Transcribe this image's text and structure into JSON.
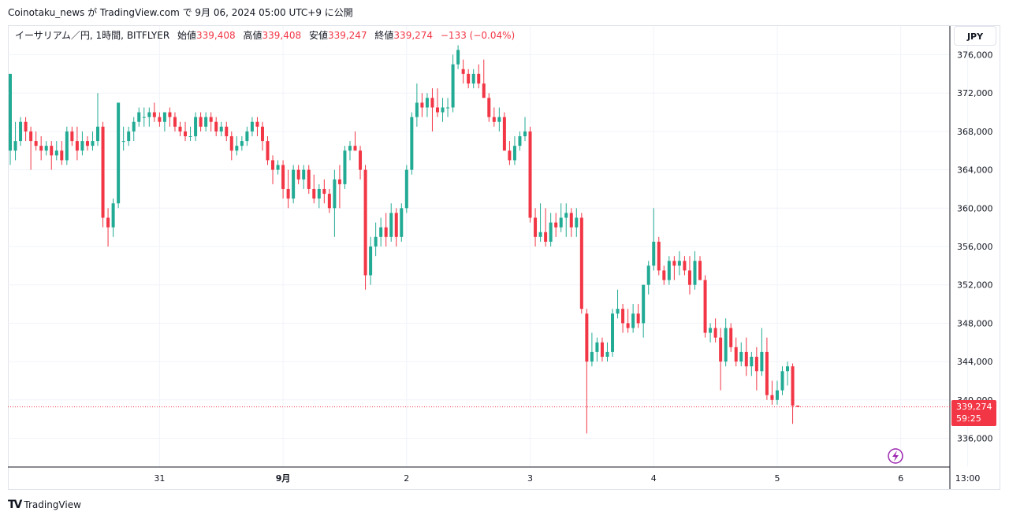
{
  "header": {
    "publish_line": "Coinotaku_news が TradingView.com で 9月 06, 2024 05:00 UTC+9 に公開"
  },
  "legend": {
    "symbol": "イーサリアム／円, 1時間, BITFLYER",
    "open_label": "始値",
    "open": "339,408",
    "high_label": "高値",
    "high": "339,408",
    "low_label": "安値",
    "low": "339,247",
    "close_label": "終値",
    "close": "339,274",
    "change": "−133 (−0.04%)"
  },
  "currency_button": "JPY",
  "last_price": {
    "price": "339,274",
    "countdown": "59:25"
  },
  "footer": {
    "brand": "TradingView",
    "logo": "TV"
  },
  "colors": {
    "up": "#22ab94",
    "down": "#f23645",
    "grid": "#f0f3fa",
    "axis_text": "#131722"
  },
  "icons": {
    "flash": "lightning-icon"
  },
  "chart_data": {
    "type": "candlestick",
    "y_ticks": [
      "336,000",
      "340,000",
      "344,000",
      "348,000",
      "352,000",
      "356,000",
      "360,000",
      "364,000",
      "368,000",
      "372,000",
      "376,000"
    ],
    "ylim": [
      333000,
      379000
    ],
    "x_ticks": [
      {
        "label": "31",
        "index": 29
      },
      {
        "label": "9月",
        "index": 53
      },
      {
        "label": "2",
        "index": 77
      },
      {
        "label": "3",
        "index": 101
      },
      {
        "label": "4",
        "index": 125
      },
      {
        "label": "5",
        "index": 149
      },
      {
        "label": "6",
        "index": 173
      },
      {
        "label": "13:00",
        "index": 186
      }
    ],
    "last_price_value": 339274,
    "candles": [
      [
        366000,
        374000,
        364500,
        374000
      ],
      [
        366000,
        369000,
        365000,
        367000
      ],
      [
        367000,
        369500,
        366500,
        369000
      ],
      [
        369000,
        369500,
        367000,
        368000
      ],
      [
        368000,
        368500,
        364000,
        367000
      ],
      [
        367000,
        368000,
        366000,
        366500
      ],
      [
        366500,
        367500,
        365000,
        366000
      ],
      [
        366000,
        367000,
        365500,
        366500
      ],
      [
        366500,
        367000,
        364000,
        365500
      ],
      [
        365500,
        367000,
        365000,
        366000
      ],
      [
        366000,
        367000,
        364500,
        365000
      ],
      [
        365000,
        368500,
        364500,
        368000
      ],
      [
        368000,
        368500,
        366500,
        367000
      ],
      [
        367000,
        368500,
        365000,
        366000
      ],
      [
        366000,
        368000,
        365500,
        367000
      ],
      [
        367000,
        367500,
        366000,
        366500
      ],
      [
        366500,
        368000,
        366000,
        367000
      ],
      [
        367000,
        372000,
        366500,
        368500
      ],
      [
        368500,
        369000,
        358000,
        359000
      ],
      [
        359000,
        360000,
        356000,
        358000
      ],
      [
        358000,
        361000,
        357000,
        360500
      ],
      [
        360500,
        371000,
        360000,
        371000
      ],
      [
        367000,
        368500,
        366000,
        367000
      ],
      [
        367000,
        368500,
        366500,
        368000
      ],
      [
        368000,
        369500,
        367000,
        369000
      ],
      [
        369000,
        370500,
        368500,
        370000
      ],
      [
        369500,
        370500,
        368500,
        369500
      ],
      [
        369500,
        370500,
        368500,
        370000
      ],
      [
        370000,
        371000,
        369000,
        369500
      ],
      [
        369500,
        370000,
        368500,
        369000
      ],
      [
        369000,
        370000,
        368000,
        370000
      ],
      [
        370000,
        370500,
        368500,
        369500
      ],
      [
        369500,
        370000,
        368000,
        368500
      ],
      [
        368500,
        369000,
        367500,
        368000
      ],
      [
        368000,
        369000,
        367000,
        367500
      ],
      [
        367500,
        368500,
        367000,
        367500
      ],
      [
        367500,
        370000,
        367000,
        369500
      ],
      [
        369500,
        370000,
        368000,
        368500
      ],
      [
        368500,
        370000,
        368000,
        369500
      ],
      [
        369500,
        370000,
        368000,
        369000
      ],
      [
        369000,
        369500,
        367500,
        368000
      ],
      [
        368000,
        369000,
        367500,
        368500
      ],
      [
        368500,
        369000,
        367000,
        367500
      ],
      [
        367500,
        368000,
        365000,
        366000
      ],
      [
        366000,
        367500,
        365500,
        366500
      ],
      [
        366500,
        367500,
        366000,
        367000
      ],
      [
        367000,
        368500,
        366500,
        368000
      ],
      [
        368000,
        369500,
        367500,
        369000
      ],
      [
        369000,
        369500,
        367500,
        368500
      ],
      [
        368500,
        369000,
        366000,
        367000
      ],
      [
        367000,
        367500,
        364500,
        365000
      ],
      [
        365000,
        365500,
        362500,
        364000
      ],
      [
        364000,
        365000,
        363500,
        364500
      ],
      [
        364500,
        365000,
        361000,
        362000
      ],
      [
        362000,
        364000,
        360000,
        361000
      ],
      [
        361000,
        364500,
        360500,
        364000
      ],
      [
        364000,
        364500,
        362500,
        363000
      ],
      [
        363000,
        364500,
        362000,
        364000
      ],
      [
        364000,
        364500,
        361500,
        362000
      ],
      [
        362000,
        363500,
        360500,
        361000
      ],
      [
        361000,
        362500,
        360000,
        362000
      ],
      [
        362000,
        363000,
        360500,
        361500
      ],
      [
        361500,
        362000,
        359500,
        360000
      ],
      [
        360000,
        364000,
        357000,
        363000
      ],
      [
        363000,
        364500,
        360000,
        362500
      ],
      [
        362500,
        366500,
        362000,
        366000
      ],
      [
        366000,
        367000,
        365000,
        366500
      ],
      [
        366500,
        368000,
        366000,
        366000
      ],
      [
        366000,
        366500,
        363000,
        364000
      ],
      [
        364000,
        364500,
        351500,
        353000
      ],
      [
        353000,
        357000,
        352000,
        356000
      ],
      [
        356000,
        358500,
        355000,
        357000
      ],
      [
        357000,
        359000,
        356000,
        358000
      ],
      [
        358000,
        359500,
        356000,
        357000
      ],
      [
        357000,
        360500,
        356500,
        359500
      ],
      [
        359500,
        360000,
        356000,
        357000
      ],
      [
        357000,
        360500,
        356500,
        360000
      ],
      [
        360000,
        364500,
        359500,
        364000
      ],
      [
        364000,
        370000,
        363500,
        369500
      ],
      [
        369500,
        373000,
        368500,
        371000
      ],
      [
        371000,
        372000,
        369500,
        370500
      ],
      [
        370500,
        372000,
        369500,
        371500
      ],
      [
        371500,
        372500,
        368000,
        370500
      ],
      [
        370500,
        372500,
        369500,
        370000
      ],
      [
        370000,
        371500,
        369000,
        370500
      ],
      [
        370500,
        371500,
        369500,
        370500
      ],
      [
        370500,
        376000,
        370000,
        375000
      ],
      [
        375000,
        377000,
        374500,
        376500
      ],
      [
        374500,
        375500,
        373000,
        374000
      ],
      [
        374000,
        374500,
        372500,
        373000
      ],
      [
        373000,
        374500,
        372500,
        374000
      ],
      [
        374000,
        375000,
        372500,
        373000
      ],
      [
        373000,
        375500,
        371500,
        371500
      ],
      [
        371500,
        372000,
        369000,
        369500
      ],
      [
        369500,
        370500,
        368500,
        369000
      ],
      [
        369000,
        370500,
        368000,
        369500
      ],
      [
        369500,
        370000,
        366000,
        366000
      ],
      [
        366000,
        367000,
        364500,
        365000
      ],
      [
        365000,
        367500,
        364500,
        366500
      ],
      [
        366500,
        368000,
        366000,
        367500
      ],
      [
        367500,
        369500,
        367000,
        368000
      ],
      [
        368000,
        368500,
        358500,
        359000
      ],
      [
        359000,
        360000,
        356000,
        357000
      ],
      [
        357000,
        360500,
        356500,
        357500
      ],
      [
        357500,
        360000,
        356000,
        356500
      ],
      [
        356500,
        359500,
        356000,
        358500
      ],
      [
        358500,
        359500,
        357000,
        358000
      ],
      [
        358000,
        360500,
        357500,
        359000
      ],
      [
        359000,
        360500,
        357000,
        359500
      ],
      [
        359500,
        360000,
        357000,
        358000
      ],
      [
        358000,
        360000,
        357000,
        359000
      ],
      [
        359000,
        359500,
        349000,
        349500
      ],
      [
        349000,
        349500,
        336500,
        344000
      ],
      [
        344000,
        347000,
        343500,
        345000
      ],
      [
        345000,
        346500,
        344000,
        346000
      ],
      [
        346000,
        346500,
        344000,
        344500
      ],
      [
        344500,
        346000,
        344000,
        345000
      ],
      [
        345000,
        349500,
        344500,
        349000
      ],
      [
        349000,
        351500,
        348500,
        349500
      ],
      [
        349500,
        350000,
        347000,
        348000
      ],
      [
        348000,
        349500,
        347000,
        347500
      ],
      [
        347500,
        350000,
        347000,
        349000
      ],
      [
        349000,
        350000,
        347500,
        348000
      ],
      [
        348000,
        352000,
        346500,
        352000
      ],
      [
        352000,
        354500,
        351000,
        354000
      ],
      [
        354000,
        360000,
        353500,
        356500
      ],
      [
        356500,
        357000,
        353000,
        353500
      ],
      [
        353500,
        354000,
        352000,
        352500
      ],
      [
        352500,
        355000,
        352000,
        354500
      ],
      [
        354500,
        355000,
        352500,
        354000
      ],
      [
        354000,
        355500,
        353000,
        354500
      ],
      [
        354500,
        355000,
        353000,
        353500
      ],
      [
        353500,
        355000,
        351000,
        352000
      ],
      [
        352000,
        355500,
        351500,
        354500
      ],
      [
        354500,
        355000,
        352500,
        352500
      ],
      [
        352500,
        353000,
        346500,
        347000
      ],
      [
        347000,
        348000,
        346000,
        347500
      ],
      [
        347500,
        348500,
        346000,
        346500
      ],
      [
        346500,
        347500,
        341000,
        344000
      ],
      [
        344000,
        348500,
        343500,
        347500
      ],
      [
        347500,
        348000,
        345000,
        345500
      ],
      [
        345500,
        346500,
        343500,
        344000
      ],
      [
        344000,
        346000,
        343500,
        345000
      ],
      [
        345000,
        346500,
        342500,
        343500
      ],
      [
        343500,
        345000,
        342500,
        344500
      ],
      [
        344500,
        345500,
        341000,
        343000
      ],
      [
        343000,
        347500,
        342500,
        345000
      ],
      [
        345000,
        346500,
        340000,
        340500
      ],
      [
        340500,
        342000,
        339500,
        340000
      ],
      [
        340000,
        342000,
        339500,
        341000
      ],
      [
        341000,
        343500,
        340500,
        343000
      ],
      [
        343000,
        344000,
        341500,
        343500
      ],
      [
        343500,
        343800,
        337500,
        339408
      ],
      [
        339408,
        339408,
        339247,
        339274
      ]
    ]
  }
}
